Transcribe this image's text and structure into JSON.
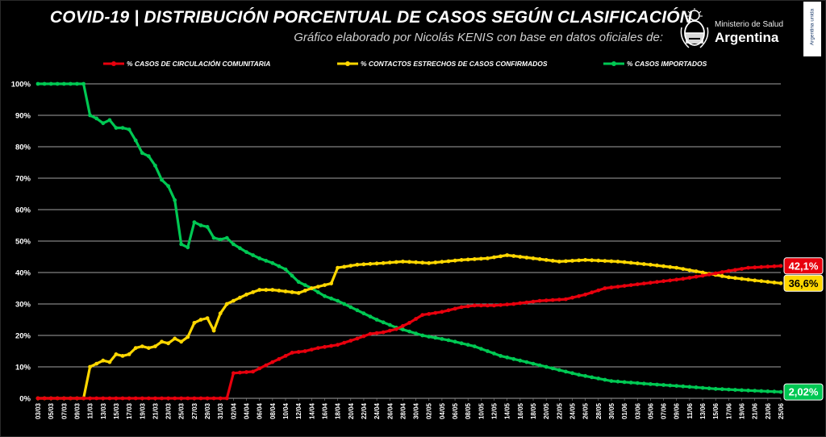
{
  "header": {
    "title": "COVID-19  |  DISTRIBUCIÓN PORCENTUAL DE CASOS SEGÚN CLASIFICACIÓN",
    "subtitle": "Gráfico elaborado por Nicolás KENIS con base en datos oficiales de:"
  },
  "logo": {
    "ministry": "Ministerio de Salud",
    "country": "Argentina",
    "badge": "Argentina unida"
  },
  "colors": {
    "community": "#e8000d",
    "contacts": "#ffd700",
    "imported": "#00c853",
    "background": "#000000",
    "grid": "#ffffff"
  },
  "chart_data": {
    "type": "line",
    "title": "COVID-19  |  DISTRIBUCIÓN PORCENTUAL DE CASOS SEGÚN CLASIFICACIÓN",
    "ylim": [
      0,
      100
    ],
    "yticks": [
      "0%",
      "10%",
      "20%",
      "30%",
      "40%",
      "50%",
      "60%",
      "70%",
      "80%",
      "90%",
      "100%"
    ],
    "x_start": "03/03",
    "x_end": "25/06",
    "xtick_labels": [
      "03/03",
      "05/03",
      "07/03",
      "09/03",
      "11/03",
      "13/03",
      "15/03",
      "17/03",
      "19/03",
      "21/03",
      "23/03",
      "25/03",
      "27/03",
      "29/03",
      "31/03",
      "02/04",
      "04/04",
      "06/04",
      "08/04",
      "10/04",
      "12/04",
      "14/04",
      "16/04",
      "18/04",
      "20/04",
      "22/04",
      "24/04",
      "26/04",
      "28/04",
      "30/04",
      "02/05",
      "04/05",
      "06/05",
      "08/05",
      "10/05",
      "12/05",
      "14/05",
      "16/05",
      "18/05",
      "20/05",
      "22/05",
      "24/05",
      "26/05",
      "28/05",
      "30/05",
      "01/06",
      "03/06",
      "05/06",
      "07/06",
      "09/06",
      "11/06",
      "13/06",
      "15/06",
      "17/06",
      "19/06",
      "21/06",
      "23/06",
      "25/06"
    ],
    "legend_position": "top",
    "series": [
      {
        "name": "% CASOS DE CIRCULACIÓN COMUNITARIA",
        "color": "#e8000d",
        "end_label": "42,1%",
        "points": [
          [
            "03/03",
            0
          ],
          [
            "01/04",
            0
          ],
          [
            "02/04",
            8
          ],
          [
            "05/04",
            8.5
          ],
          [
            "08/04",
            11.5
          ],
          [
            "10/04",
            13.5
          ],
          [
            "11/04",
            14.5
          ],
          [
            "13/04",
            15
          ],
          [
            "15/04",
            16
          ],
          [
            "18/04",
            17
          ],
          [
            "21/04",
            19
          ],
          [
            "23/04",
            20.5
          ],
          [
            "25/04",
            21
          ],
          [
            "27/04",
            22
          ],
          [
            "29/04",
            24
          ],
          [
            "01/05",
            26.5
          ],
          [
            "04/05",
            27.5
          ],
          [
            "07/05",
            29
          ],
          [
            "09/05",
            29.5
          ],
          [
            "12/05",
            29.5
          ],
          [
            "15/05",
            30
          ],
          [
            "19/05",
            31
          ],
          [
            "23/05",
            31.5
          ],
          [
            "26/05",
            33
          ],
          [
            "29/05",
            35
          ],
          [
            "02/06",
            36
          ],
          [
            "06/06",
            37
          ],
          [
            "10/06",
            38
          ],
          [
            "13/06",
            39
          ],
          [
            "17/06",
            40.5
          ],
          [
            "20/06",
            41.5
          ],
          [
            "25/06",
            42.1
          ]
        ]
      },
      {
        "name": "% CONTACTOS ESTRECHOS DE CASOS CONFIRMADOS",
        "color": "#ffd700",
        "end_label": "36,6%",
        "points": [
          [
            "03/03",
            0
          ],
          [
            "10/03",
            0
          ],
          [
            "11/03",
            10
          ],
          [
            "12/03",
            11
          ],
          [
            "13/03",
            12
          ],
          [
            "14/03",
            11.5
          ],
          [
            "15/03",
            14
          ],
          [
            "16/03",
            13.5
          ],
          [
            "17/03",
            14
          ],
          [
            "18/03",
            16
          ],
          [
            "19/03",
            16.5
          ],
          [
            "20/03",
            16
          ],
          [
            "21/03",
            16.5
          ],
          [
            "22/03",
            18
          ],
          [
            "23/03",
            17.5
          ],
          [
            "24/03",
            19
          ],
          [
            "25/03",
            18
          ],
          [
            "26/03",
            19.5
          ],
          [
            "27/03",
            24
          ],
          [
            "28/03",
            25
          ],
          [
            "29/03",
            25.5
          ],
          [
            "30/03",
            21.5
          ],
          [
            "31/03",
            27
          ],
          [
            "01/04",
            30
          ],
          [
            "02/04",
            31
          ],
          [
            "04/04",
            33
          ],
          [
            "06/04",
            34.5
          ],
          [
            "08/04",
            34.5
          ],
          [
            "10/04",
            34
          ],
          [
            "12/04",
            33.5
          ],
          [
            "14/04",
            35
          ],
          [
            "16/04",
            36
          ],
          [
            "17/04",
            36.5
          ],
          [
            "18/04",
            41.5
          ],
          [
            "21/04",
            42.5
          ],
          [
            "25/04",
            43
          ],
          [
            "28/04",
            43.5
          ],
          [
            "02/05",
            43
          ],
          [
            "07/05",
            44
          ],
          [
            "11/05",
            44.5
          ],
          [
            "14/05",
            45.5
          ],
          [
            "18/05",
            44.5
          ],
          [
            "22/05",
            43.5
          ],
          [
            "26/05",
            44
          ],
          [
            "31/05",
            43.5
          ],
          [
            "05/06",
            42.5
          ],
          [
            "09/06",
            41.5
          ],
          [
            "13/06",
            40
          ],
          [
            "17/06",
            38.5
          ],
          [
            "21/06",
            37.5
          ],
          [
            "25/06",
            36.6
          ]
        ]
      },
      {
        "name": "% CASOS IMPORTADOS",
        "color": "#00c853",
        "end_label": "2,02%",
        "points": [
          [
            "03/03",
            100
          ],
          [
            "10/03",
            100
          ],
          [
            "11/03",
            90
          ],
          [
            "12/03",
            89
          ],
          [
            "13/03",
            87.5
          ],
          [
            "14/03",
            88.5
          ],
          [
            "15/03",
            86
          ],
          [
            "16/03",
            86
          ],
          [
            "17/03",
            85.5
          ],
          [
            "18/03",
            82
          ],
          [
            "19/03",
            78
          ],
          [
            "20/03",
            77
          ],
          [
            "21/03",
            74
          ],
          [
            "22/03",
            69.5
          ],
          [
            "23/03",
            67.5
          ],
          [
            "24/03",
            63
          ],
          [
            "25/03",
            49
          ],
          [
            "26/03",
            48
          ],
          [
            "27/03",
            56
          ],
          [
            "28/03",
            55
          ],
          [
            "29/03",
            54.5
          ],
          [
            "30/03",
            51
          ],
          [
            "31/03",
            50.5
          ],
          [
            "01/04",
            51
          ],
          [
            "02/04",
            49
          ],
          [
            "04/04",
            46.5
          ],
          [
            "06/04",
            44.5
          ],
          [
            "08/04",
            43
          ],
          [
            "10/04",
            41
          ],
          [
            "12/04",
            37
          ],
          [
            "14/04",
            35
          ],
          [
            "16/04",
            32.5
          ],
          [
            "18/04",
            31
          ],
          [
            "21/04",
            28
          ],
          [
            "24/04",
            25
          ],
          [
            "27/04",
            22.5
          ],
          [
            "01/05",
            20
          ],
          [
            "05/05",
            18.5
          ],
          [
            "09/05",
            16.5
          ],
          [
            "13/05",
            13.5
          ],
          [
            "17/05",
            11.5
          ],
          [
            "21/05",
            9.5
          ],
          [
            "25/05",
            7.5
          ],
          [
            "30/05",
            5.5
          ],
          [
            "05/06",
            4.5
          ],
          [
            "10/06",
            3.8
          ],
          [
            "15/06",
            3
          ],
          [
            "20/06",
            2.5
          ],
          [
            "25/06",
            2.02
          ]
        ]
      }
    ]
  }
}
